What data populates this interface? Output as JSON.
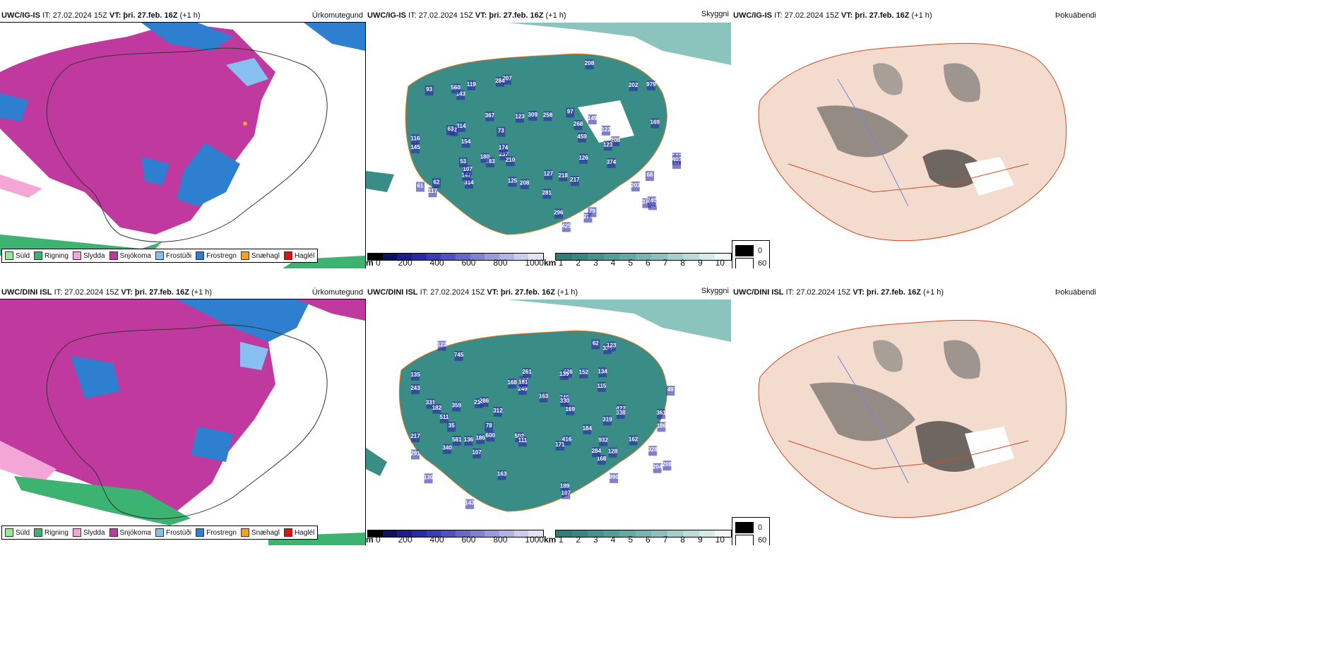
{
  "rows": [
    {
      "model": "UWC/IG-IS",
      "it": "IT: 27.02.2024 15Z",
      "vt_label": "VT:",
      "vt_value": "þri. 27.feb. 16Z",
      "lead": "(+1 h)"
    },
    {
      "model": "UWC/DINI ISL",
      "it": "IT: 27.02.2024 15Z",
      "vt_label": "VT:",
      "vt_value": "þri. 27.feb. 16Z",
      "lead": "(+1 h)"
    }
  ],
  "panel_titles": {
    "precip_type": "Úrkomutegund",
    "visibility": "Skyggni",
    "fog": "Þokuábendi"
  },
  "precip_legend": [
    {
      "label": "Súld",
      "color": "#90ee90"
    },
    {
      "label": "Rigning",
      "color": "#3cb371"
    },
    {
      "label": "Slydda",
      "color": "#f4a6d7"
    },
    {
      "label": "Snjókoma",
      "color": "#c0399f"
    },
    {
      "label": "Frostúði",
      "color": "#87bff0"
    },
    {
      "label": "Frostregn",
      "color": "#2e7fcf"
    },
    {
      "label": "Snæhagl",
      "color": "#f5a020"
    },
    {
      "label": "Haglél",
      "color": "#e01010"
    }
  ],
  "height_bar": {
    "unit": "m",
    "ticks": [
      "0",
      "200",
      "400",
      "600",
      "800",
      "1000"
    ],
    "colors": [
      "#000000",
      "#101060",
      "#1c1c8c",
      "#2a2aa8",
      "#3b3bb8",
      "#5050c4",
      "#6868cc",
      "#8080d4",
      "#9a9adc",
      "#b4b4e4",
      "#ccccec",
      "#e4e4f4"
    ]
  },
  "vis_bar": {
    "unit": "km",
    "ticks": [
      "1",
      "2",
      "3",
      "4",
      "5",
      "6",
      "7",
      "8",
      "9",
      "10"
    ],
    "colors": [
      "#2a7f78",
      "#348a83",
      "#40958e",
      "#4fa099",
      "#60aba4",
      "#74b7b1",
      "#8ac3be",
      "#a2d0cb",
      "#bcdcd8",
      "#d6eae7",
      "#f0f7f6"
    ]
  },
  "fog_legend": [
    {
      "label": "0",
      "color": "#000000"
    },
    {
      "label": "60",
      "color": "#ffffff"
    }
  ],
  "vis_labels_row1": [
    "979",
    "374",
    "268",
    "314",
    "367",
    "379",
    "183",
    "154",
    "203",
    "125",
    "146",
    "274",
    "180",
    "314",
    "207",
    "126",
    "237",
    "208",
    "143",
    "149",
    "147",
    "117",
    "107",
    "127",
    "123",
    "296",
    "208",
    "202",
    "284",
    "116",
    "208",
    "217",
    "560",
    "425",
    "122",
    "22",
    "61",
    "61",
    "63",
    "68",
    "97",
    "459",
    "119",
    "93",
    "79",
    "394",
    "460",
    "145",
    "258",
    "174",
    "281",
    "123",
    "218",
    "309",
    "240",
    "73",
    "210",
    "53",
    "169",
    "62"
  ],
  "vis_labels_row2": [
    "502",
    "249",
    "422",
    "340",
    "331",
    "168",
    "184",
    "168",
    "162",
    "212",
    "511",
    "208",
    "111",
    "163",
    "243",
    "135",
    "291",
    "163",
    "261",
    "189",
    "284",
    "128",
    "338",
    "115",
    "186",
    "932",
    "581",
    "426",
    "335",
    "328",
    "62",
    "286",
    "990",
    "107",
    "745",
    "361",
    "139",
    "130",
    "169",
    "78",
    "204",
    "143",
    "122",
    "416",
    "217",
    "127",
    "123",
    "181",
    "319",
    "182",
    "600",
    "152",
    "359",
    "745",
    "312",
    "107",
    "136",
    "35",
    "330",
    "186",
    "49",
    "134",
    "171"
  ]
}
